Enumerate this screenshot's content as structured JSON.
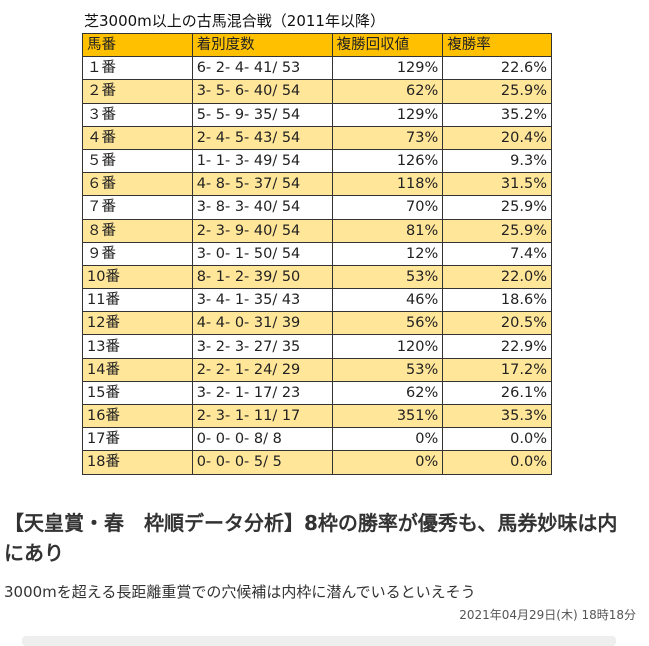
{
  "table": {
    "title": "芝3000m以上の古馬混合戦（2011年以降）",
    "headers": [
      "馬番",
      "着別度数",
      "複勝回収値",
      "複勝率"
    ],
    "rows": [
      [
        "１番",
        "6- 2- 4- 41/ 53",
        "129%",
        "22.6%"
      ],
      [
        "２番",
        "3- 5- 6- 40/ 54",
        "62%",
        "25.9%"
      ],
      [
        "３番",
        "5- 5- 9- 35/ 54",
        "129%",
        "35.2%"
      ],
      [
        "４番",
        "2- 4- 5- 43/ 54",
        "73%",
        "20.4%"
      ],
      [
        "５番",
        "1- 1- 3- 49/ 54",
        "126%",
        "9.3%"
      ],
      [
        "６番",
        "4- 8- 5- 37/ 54",
        "118%",
        "31.5%"
      ],
      [
        "７番",
        "3- 8- 3- 40/ 54",
        "70%",
        "25.9%"
      ],
      [
        "８番",
        "2- 3- 9- 40/ 54",
        "81%",
        "25.9%"
      ],
      [
        "９番",
        "3- 0- 1- 50/ 54",
        "12%",
        "7.4%"
      ],
      [
        "10番",
        "8- 1- 2- 39/ 50",
        "53%",
        "22.0%"
      ],
      [
        "11番",
        "3- 4- 1- 35/ 43",
        "46%",
        "18.6%"
      ],
      [
        "12番",
        "4- 4- 0- 31/ 39",
        "56%",
        "20.5%"
      ],
      [
        "13番",
        "3- 2- 3- 27/ 35",
        "120%",
        "22.9%"
      ],
      [
        "14番",
        "2- 2- 1- 24/ 29",
        "53%",
        "17.2%"
      ],
      [
        "15番",
        "3- 2- 1- 17/ 23",
        "62%",
        "26.1%"
      ],
      [
        "16番",
        "2- 3- 1- 11/ 17",
        "351%",
        "35.3%"
      ],
      [
        "17番",
        "0- 0- 0- 8/ 8",
        "0%",
        "0.0%"
      ],
      [
        "18番",
        "0- 0- 0- 5/ 5",
        "0%",
        "0.0%"
      ]
    ]
  },
  "article": {
    "headline": "【天皇賞・春　枠順データ分析】8枠の勝率が優秀も、馬券妙味は内にあり",
    "subtitle": "3000mを超える長距離重賞での穴候補は内枠に潜んでいるといえそう",
    "date": "2021年04月29日(木) 18時18分"
  }
}
